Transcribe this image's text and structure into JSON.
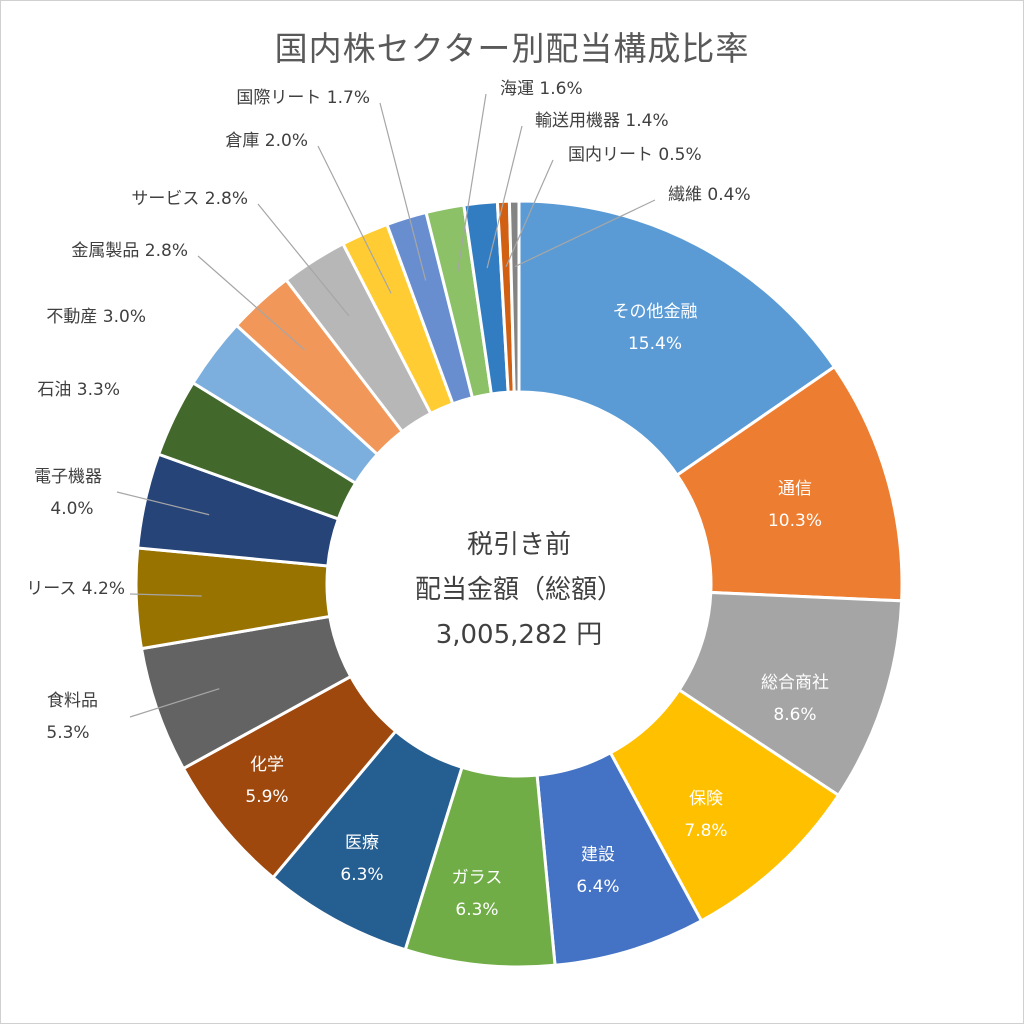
{
  "title": "国内株セクター別配当構成比率",
  "center": {
    "line1": "税引き前",
    "line2": "配当金額（総額）",
    "line3": "3,005,282 円"
  },
  "chart_data": {
    "type": "pie",
    "variant": "doughnut",
    "title": "国内株セクター別配当構成比率",
    "unit": "%",
    "slices": [
      {
        "label": "その他金融",
        "value": 15.4,
        "value_label": "15.4%",
        "color": "#5B9BD5"
      },
      {
        "label": "通信",
        "value": 10.3,
        "value_label": "10.3%",
        "color": "#ED7D31"
      },
      {
        "label": "総合商社",
        "value": 8.6,
        "value_label": "8.6%",
        "color": "#A5A5A5"
      },
      {
        "label": "保険",
        "value": 7.8,
        "value_label": "7.8%",
        "color": "#FFC000"
      },
      {
        "label": "建設",
        "value": 6.4,
        "value_label": "6.4%",
        "color": "#4472C4"
      },
      {
        "label": "ガラス",
        "value": 6.3,
        "value_label": "6.3%",
        "color": "#70AD47"
      },
      {
        "label": "医療",
        "value": 6.3,
        "value_label": "6.3%",
        "color": "#255E91"
      },
      {
        "label": "化学",
        "value": 5.9,
        "value_label": "5.9%",
        "color": "#9E480E"
      },
      {
        "label": "食料品",
        "value": 5.3,
        "value_label": "5.3%",
        "color": "#636363"
      },
      {
        "label": "リース",
        "value": 4.2,
        "value_label": "4.2%",
        "color": "#997300"
      },
      {
        "label": "電子機器",
        "value": 4.0,
        "value_label": "4.0%",
        "color": "#264478"
      },
      {
        "label": "石油",
        "value": 3.3,
        "value_label": "3.3%",
        "color": "#43682B"
      },
      {
        "label": "不動産",
        "value": 3.0,
        "value_label": "3.0%",
        "color": "#7CAFDD"
      },
      {
        "label": "金属製品",
        "value": 2.8,
        "value_label": "2.8%",
        "color": "#F1975A"
      },
      {
        "label": "サービス",
        "value": 2.8,
        "value_label": "2.8%",
        "color": "#B7B7B7"
      },
      {
        "label": "倉庫",
        "value": 2.0,
        "value_label": "2.0%",
        "color": "#FFCD33"
      },
      {
        "label": "国際リート",
        "value": 1.7,
        "value_label": "1.7%",
        "color": "#698ED0"
      },
      {
        "label": "海運",
        "value": 1.6,
        "value_label": "1.6%",
        "color": "#8CC168"
      },
      {
        "label": "輸送用機器",
        "value": 1.4,
        "value_label": "1.4%",
        "color": "#327DC2"
      },
      {
        "label": "国内リート",
        "value": 0.5,
        "value_label": "0.5%",
        "color": "#D26012"
      },
      {
        "label": "繊維",
        "value": 0.4,
        "value_label": "0.4%",
        "color": "#848484"
      }
    ]
  }
}
